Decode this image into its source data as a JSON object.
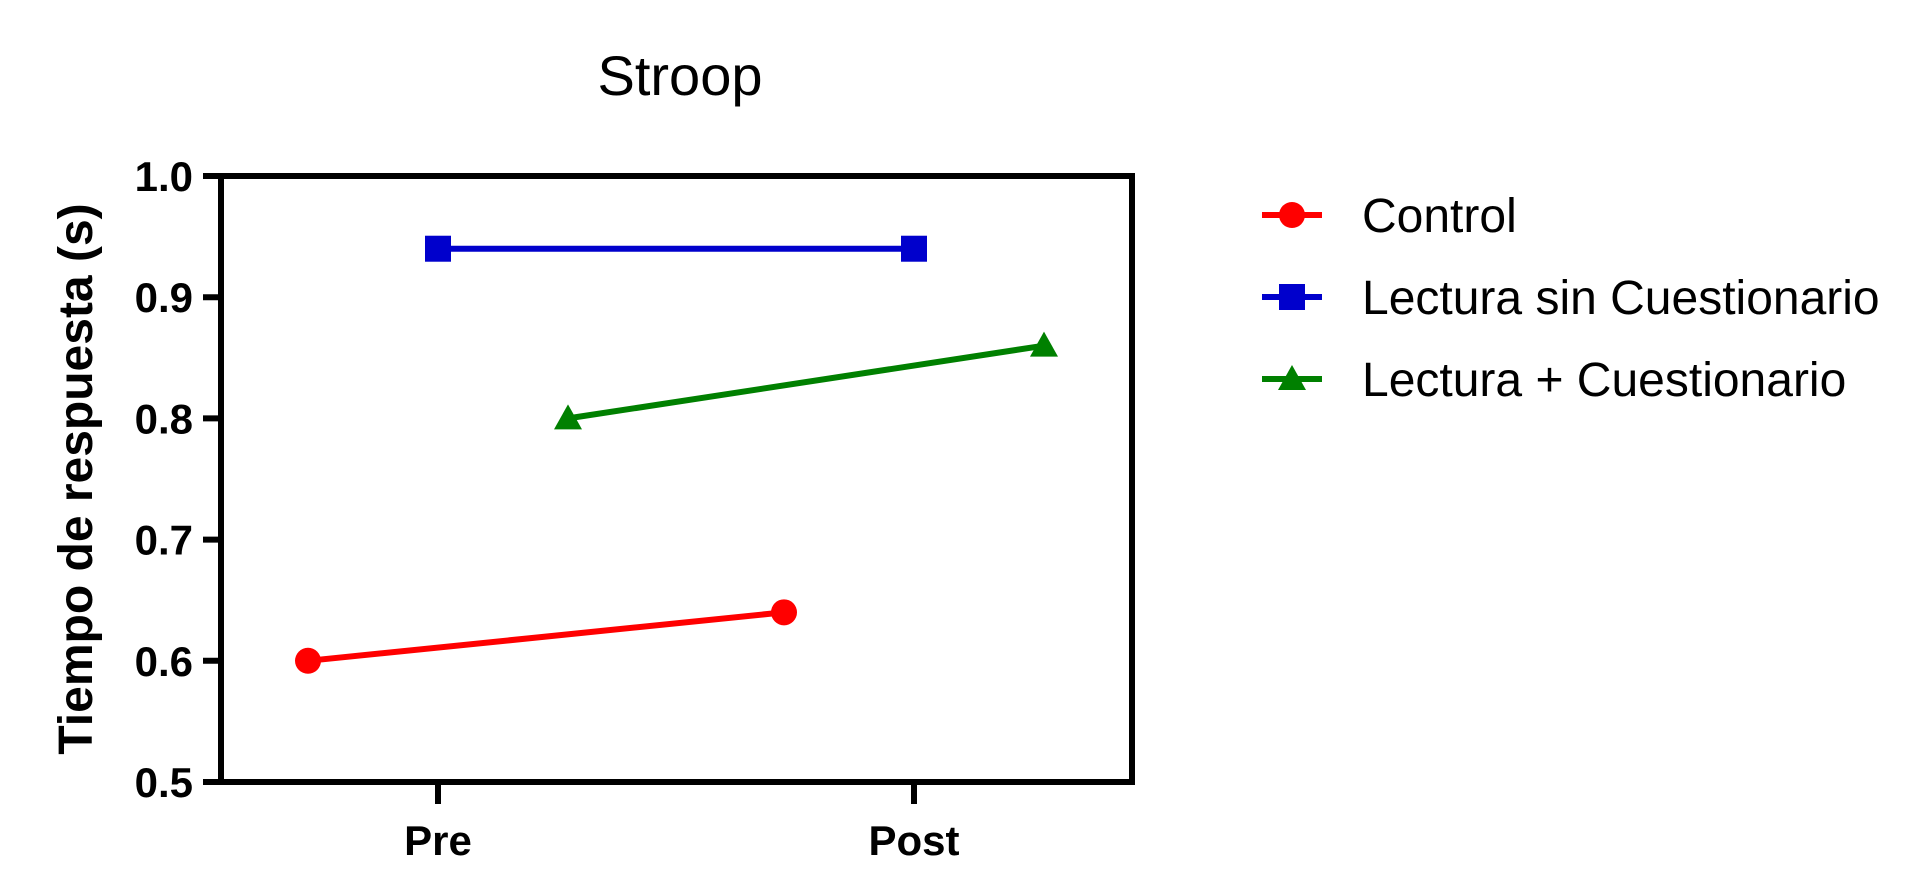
{
  "chart_data": {
    "type": "line",
    "title": "Stroop",
    "xlabel": "",
    "ylabel": "Tiempo de respuesta (s)",
    "categories": [
      "Pre",
      "Post"
    ],
    "ylim": [
      0.5,
      1.0
    ],
    "yticks": [
      "0.5",
      "0.6",
      "0.7",
      "0.8",
      "0.9",
      "1.0"
    ],
    "grid": false,
    "legend_position": "right",
    "series": [
      {
        "name": "Control",
        "values": [
          0.6,
          0.64
        ],
        "color": "#ff0000",
        "marker": "circle"
      },
      {
        "name": "Lectura sin Cuestionario",
        "values": [
          0.94,
          0.94
        ],
        "color": "#0000cc",
        "marker": "square"
      },
      {
        "name": "Lectura + Cuestionario",
        "values": [
          0.8,
          0.86
        ],
        "color": "#008000",
        "marker": "triangle"
      }
    ]
  }
}
